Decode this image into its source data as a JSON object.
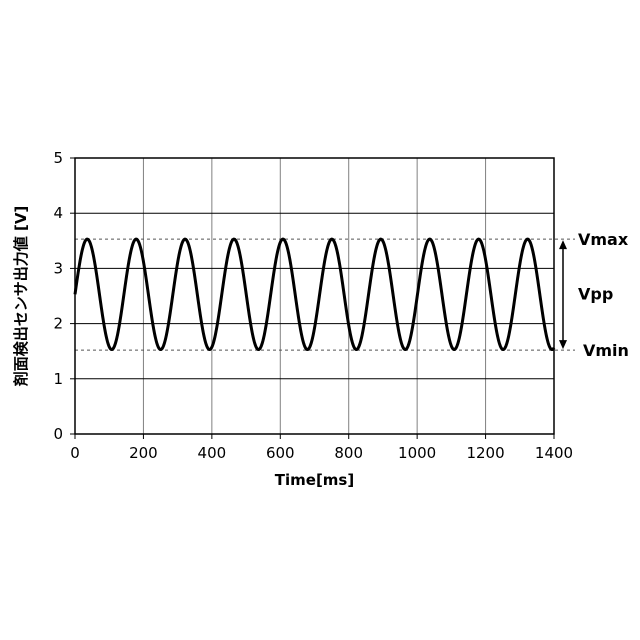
{
  "chart_data": {
    "type": "line",
    "xlabel": "Time[ms]",
    "ylabel": "剤面検出センサ出力値 [V]",
    "xlim": [
      0,
      1400
    ],
    "ylim": [
      0,
      5
    ],
    "x_ticks": [
      0,
      200,
      400,
      600,
      800,
      1000,
      1200,
      1400
    ],
    "y_ticks": [
      0,
      1,
      2,
      3,
      4,
      5
    ],
    "grid": true,
    "series": [
      {
        "signal": "sine",
        "offset": 2.53,
        "amplitude": 1.0,
        "period_ms": 143,
        "x_start": 0,
        "x_end": 1400,
        "color": "#000000"
      }
    ],
    "reference_lines": [
      {
        "label": "Vmax",
        "value": 3.53
      },
      {
        "label": "Vmin",
        "value": 1.52
      }
    ],
    "annotations": {
      "vmax_label": "Vmax",
      "vpp_label": "Vpp",
      "vmin_label": "Vmin"
    }
  }
}
